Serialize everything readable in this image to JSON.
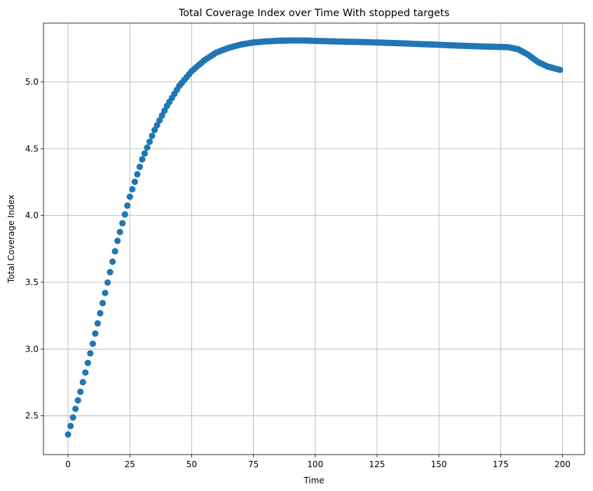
{
  "chart_data": {
    "type": "scatter",
    "title": "Total Coverage Index over Time With stopped targets",
    "xlabel": "Time",
    "ylabel": "Total Coverage Index",
    "xlim": [
      -9.95,
      208.95
    ],
    "ylim": [
      2.21,
      5.44
    ],
    "xticks": [
      0,
      25,
      50,
      75,
      100,
      125,
      150,
      175,
      200
    ],
    "yticks": [
      2.5,
      3.0,
      3.5,
      4.0,
      4.5,
      5.0
    ],
    "ytick_labels": [
      "2.5",
      "3.0",
      "3.5",
      "4.0",
      "4.5",
      "5.0"
    ],
    "grid": true,
    "marker_color": "#1f77b4",
    "key_points": {
      "x": [
        0,
        5,
        10,
        15,
        20,
        25,
        30,
        35,
        40,
        45,
        50,
        55,
        60,
        65,
        70,
        75,
        80,
        85,
        90,
        95,
        100,
        110,
        120,
        130,
        140,
        150,
        160,
        170,
        178,
        182,
        186,
        190,
        194,
        199
      ],
      "y": [
        2.36,
        2.68,
        3.04,
        3.42,
        3.81,
        4.14,
        4.42,
        4.64,
        4.82,
        4.97,
        5.08,
        5.16,
        5.22,
        5.255,
        5.28,
        5.295,
        5.303,
        5.308,
        5.31,
        5.31,
        5.307,
        5.302,
        5.298,
        5.292,
        5.285,
        5.278,
        5.27,
        5.264,
        5.26,
        5.245,
        5.205,
        5.15,
        5.115,
        5.09
      ]
    }
  }
}
